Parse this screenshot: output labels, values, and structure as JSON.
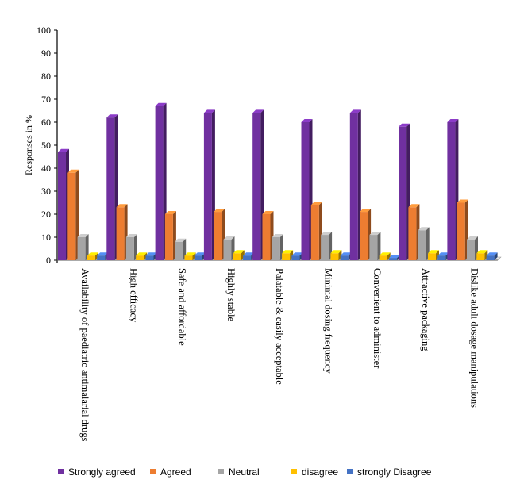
{
  "chart_data": {
    "type": "bar",
    "title": "",
    "xlabel": "",
    "ylabel": "Responses in %",
    "ylim": [
      0,
      100
    ],
    "yticks": [
      0,
      10,
      20,
      30,
      40,
      50,
      60,
      70,
      80,
      90,
      100
    ],
    "grid": false,
    "legend_position": "bottom",
    "categories": [
      "Availability of paediatric antimalarial drugs",
      "High efficacy",
      "Safe and affordable",
      "Highly stable",
      "Palatable & easily acceptable",
      "Minimal dosing frequency",
      "Convenient to administer",
      "Attractive packaging",
      "Dislike adult dosage manipulations"
    ],
    "series": [
      {
        "name": "Strongly agreed",
        "color": "#7030A0",
        "values": [
          47,
          62,
          67,
          64,
          64,
          60,
          64,
          58,
          60
        ]
      },
      {
        "name": "Agreed",
        "color": "#ED7D31",
        "values": [
          38,
          23,
          20,
          21,
          20,
          24,
          21,
          23,
          25
        ]
      },
      {
        "name": "Neutral",
        "color": "#A5A5A5",
        "values": [
          10,
          10,
          8,
          9,
          10,
          11,
          11,
          13,
          9
        ]
      },
      {
        "name": "disagree",
        "color": "#FFC000",
        "values": [
          2,
          2,
          2,
          3,
          3,
          3,
          2,
          3,
          3
        ]
      },
      {
        "name": "strongly Disagree",
        "color": "#4472C4",
        "values": [
          2,
          2,
          2,
          2,
          2,
          2,
          1,
          2,
          2
        ]
      }
    ]
  }
}
